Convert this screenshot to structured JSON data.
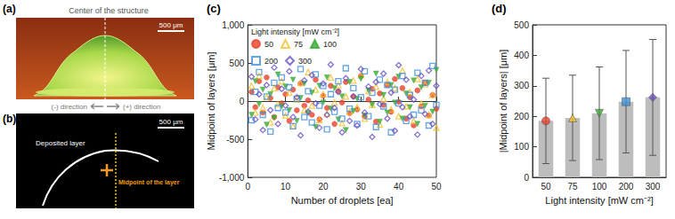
{
  "panels": {
    "a": {
      "label": "(a)",
      "annotation": "Center of the structure",
      "scale_bar": "500 μm"
    },
    "arrows": {
      "minus": "(-) direction",
      "plus": "(+) direction"
    },
    "b": {
      "label": "(b)",
      "annotations": [
        "Deposited layer",
        "Midpoint of the layer"
      ],
      "scale_bar": "500 μm"
    }
  },
  "chart_data": [
    {
      "type": "scatter",
      "title": "(c)",
      "x_label": "Number of droplets [ea]",
      "y_label": "Midpoint of layers [μm]",
      "legend_title": "Light intensity [mW cm⁻²]",
      "legend": "upper left",
      "x": [
        1,
        2,
        3,
        4,
        5,
        6,
        7,
        8,
        9,
        10,
        11,
        12,
        13,
        14,
        15,
        16,
        17,
        18,
        19,
        20,
        21,
        22,
        23,
        24,
        25,
        26,
        27,
        28,
        29,
        30,
        31,
        32,
        33,
        34,
        35,
        36,
        37,
        38,
        39,
        40,
        41,
        42,
        43,
        44,
        45,
        46,
        47,
        48,
        49,
        50
      ],
      "series": [
        {
          "name": "50",
          "color": "#e8412c",
          "marker": "circle",
          "values": [
            120,
            -80,
            260,
            -150,
            310,
            40,
            -210,
            180,
            -30,
            90,
            -260,
            150,
            -120,
            230,
            -60,
            10,
            -180,
            280,
            -240,
            70,
            -90,
            200,
            -300,
            130,
            -20,
            250,
            -160,
            60,
            -110,
            330,
            -200,
            20,
            160,
            -270,
            100,
            -50,
            210,
            -140,
            290,
            -10,
            170,
            -230,
            50,
            -320,
            140,
            -70,
            240,
            -190,
            80,
            -100
          ]
        },
        {
          "name": "75",
          "color": "#f2c12e",
          "marker": "triangle-open",
          "values": [
            200,
            -150,
            330,
            -90,
            50,
            -280,
            170,
            -40,
            260,
            -190,
            110,
            -330,
            20,
            240,
            -120,
            380,
            -60,
            150,
            -250,
            90,
            -170,
            310,
            -20,
            210,
            -290,
            60,
            -140,
            270,
            -80,
            340,
            -230,
            130,
            -50,
            190,
            -310,
            30,
            250,
            -110,
            170,
            -200,
            400,
            -70,
            120,
            -260,
            290,
            -30,
            220,
            -180,
            80,
            -350
          ]
        },
        {
          "name": "100",
          "color": "#3aaa35",
          "marker": "triangle-down",
          "values": [
            -180,
            260,
            -40,
            150,
            -310,
            90,
            -220,
            350,
            -70,
            190,
            -120,
            280,
            -260,
            40,
            230,
            -160,
            110,
            -340,
            200,
            -20,
            310,
            -100,
            170,
            -240,
            60,
            -380,
            250,
            -130,
            30,
            290,
            -190,
            140,
            -50,
            360,
            -270,
            80,
            -150,
            210,
            -20,
            320,
            -230,
            100,
            -80,
            270,
            -300,
            180,
            -60,
            240,
            -140,
            410
          ]
        },
        {
          "name": "200",
          "color": "#3f8fd8",
          "marker": "square-open",
          "values": [
            -250,
            120,
            380,
            -180,
            60,
            -400,
            240,
            -90,
            310,
            -150,
            180,
            -330,
            30,
            420,
            -210,
            130,
            -280,
            350,
            -60,
            200,
            -370,
            90,
            -140,
            260,
            -230,
            430,
            -100,
            170,
            -300,
            50,
            390,
            -200,
            110,
            -340,
            280,
            -70,
            210,
            -410,
            150,
            -30,
            330,
            -260,
            80,
            -180,
            370,
            -120,
            240,
            -320,
            460,
            -50
          ]
        },
        {
          "name": "300",
          "color": "#6a4fc2",
          "marker": "diamond-open",
          "values": [
            320,
            -240,
            90,
            -380,
            210,
            -120,
            440,
            -300,
            160,
            -60,
            390,
            -210,
            50,
            -450,
            270,
            -140,
            340,
            -30,
            -350,
            230,
            -180,
            480,
            -90,
            120,
            -410,
            300,
            -260,
            60,
            -320,
            420,
            -150,
            190,
            -470,
            250,
            -40,
            360,
            -230,
            110,
            -390,
            470,
            -80,
            280,
            -200,
            20,
            -440,
            330,
            -170,
            400,
            -300,
            200
          ]
        }
      ],
      "xlim": [
        0,
        50
      ],
      "xticks": [
        0,
        10,
        20,
        30,
        40,
        50
      ],
      "ylim": [
        -1000,
        1000
      ],
      "yticks": [
        -1000,
        -500,
        0,
        500,
        1000
      ]
    },
    {
      "type": "bar",
      "title": "(d)",
      "x_label": "Light intensity [mW cm⁻²]",
      "y_label": "|Midpoint of layers| [μm]",
      "categories": [
        "50",
        "75",
        "100",
        "200",
        "300"
      ],
      "values": [
        185,
        195,
        210,
        248,
        262
      ],
      "errors": [
        140,
        140,
        152,
        168,
        190
      ],
      "color": "#bdbdbd",
      "colors": [
        "#e8412c",
        "#f2c12e",
        "#3aaa35",
        "#3f8fd8",
        "#6a4fc2"
      ],
      "ylim": [
        0,
        500
      ],
      "yticks": [
        0,
        100,
        200,
        300,
        400,
        500
      ]
    }
  ]
}
